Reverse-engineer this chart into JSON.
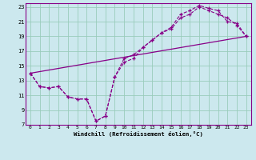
{
  "xlabel": "Windchill (Refroidissement éolien,°C)",
  "background_color": "#cce8ee",
  "grid_color": "#99ccbb",
  "line_color": "#880088",
  "spine_color": "#880088",
  "xlim": [
    -0.5,
    23.5
  ],
  "ylim": [
    7,
    23.5
  ],
  "xticks": [
    0,
    1,
    2,
    3,
    4,
    5,
    6,
    7,
    8,
    9,
    10,
    11,
    12,
    13,
    14,
    15,
    16,
    17,
    18,
    19,
    20,
    21,
    22,
    23
  ],
  "yticks": [
    7,
    9,
    11,
    13,
    15,
    17,
    19,
    21,
    23
  ],
  "curve1_x": [
    0,
    1,
    2,
    3,
    4,
    5,
    6,
    7,
    8,
    9,
    10,
    11,
    12,
    13,
    14,
    15,
    16,
    17,
    18,
    19,
    20,
    21,
    22,
    23
  ],
  "curve1_y": [
    14.0,
    12.2,
    12.0,
    12.2,
    10.8,
    10.5,
    10.5,
    7.5,
    8.2,
    13.5,
    16.0,
    16.5,
    17.5,
    18.5,
    19.5,
    20.2,
    22.0,
    22.5,
    23.2,
    22.8,
    22.5,
    21.0,
    20.8,
    19.0
  ],
  "curve2_x": [
    0,
    1,
    2,
    3,
    4,
    5,
    6,
    7,
    8,
    9,
    10,
    11,
    12,
    13,
    14,
    15,
    16,
    17,
    18,
    19,
    20,
    21,
    22,
    23
  ],
  "curve2_y": [
    14.0,
    12.2,
    12.0,
    12.2,
    10.8,
    10.5,
    10.5,
    7.5,
    8.2,
    13.5,
    15.5,
    16.0,
    17.5,
    18.5,
    19.5,
    20.0,
    21.5,
    22.0,
    23.0,
    22.5,
    22.0,
    21.5,
    20.5,
    19.0
  ],
  "curve3_x": [
    0,
    23
  ],
  "curve3_y": [
    14.0,
    19.0
  ]
}
